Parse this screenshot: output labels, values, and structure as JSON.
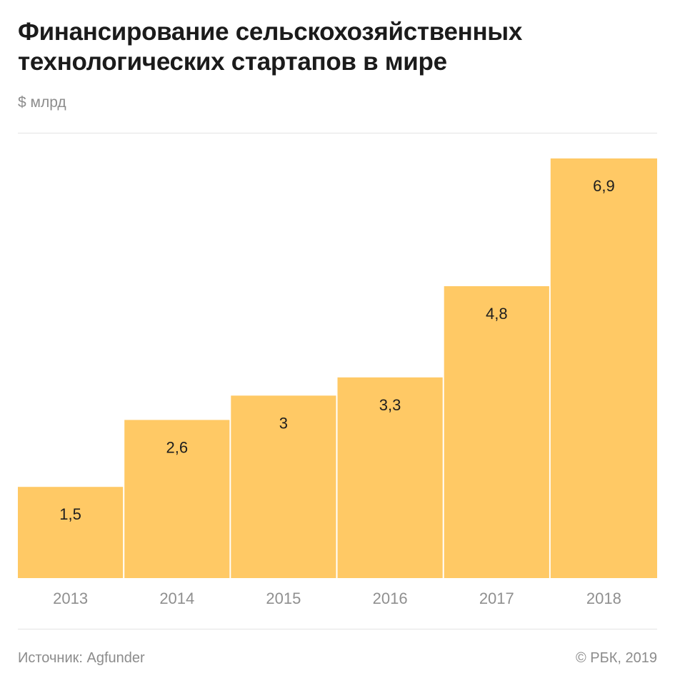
{
  "header": {
    "title_line1": "Финансирование сельскохозяйственных",
    "title_line2": "технологических стартапов в мире",
    "subtitle": "$ млрд"
  },
  "chart_data": {
    "type": "bar",
    "title": "Финансирование сельскохозяйственных технологических стартапов в мире",
    "ylabel": "$ млрд",
    "xlabel": "",
    "categories": [
      "2013",
      "2014",
      "2015",
      "2016",
      "2017",
      "2018"
    ],
    "values": [
      1.5,
      2.6,
      3,
      3.3,
      4.8,
      6.9
    ],
    "value_labels": [
      "1,5",
      "2,6",
      "3",
      "3,3",
      "4,8",
      "6,9"
    ],
    "ylim": [
      0,
      6.9
    ],
    "grid": false,
    "legend": "none",
    "bar_color": "#ffc965"
  },
  "footer": {
    "source": "Источник: Agfunder",
    "copyright": "© РБК, 2019"
  }
}
